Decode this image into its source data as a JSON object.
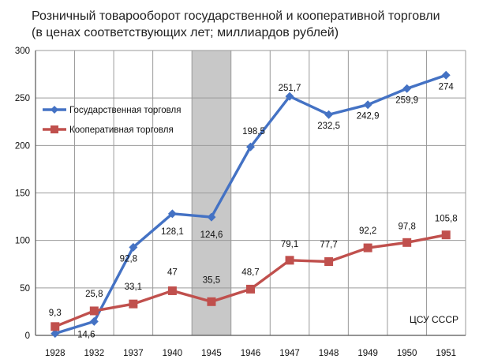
{
  "chart_data": {
    "type": "line",
    "title_line1": "Розничный товарооборот государственной и кооперативной торговли",
    "title_line2": "(в ценах соответствующих лет; миллиардов рублей)",
    "categories": [
      "1928",
      "1932",
      "1937",
      "1940",
      "1945",
      "1946",
      "1947",
      "1948",
      "1949",
      "1950",
      "1951"
    ],
    "ylim": [
      0,
      300
    ],
    "yticks": [
      0,
      50,
      100,
      150,
      200,
      250,
      300
    ],
    "grid": true,
    "legend_position": "top-left",
    "highlight_category": "1945",
    "source": "ЦСУ СССР",
    "series": [
      {
        "name": "Государственная торговля",
        "color": "#4472c4",
        "marker": "diamond",
        "values": [
          2,
          14.6,
          92.8,
          128.1,
          124.6,
          198.5,
          251.7,
          232.5,
          242.9,
          259.9,
          274
        ],
        "labels": [
          "",
          "14,6",
          "92,8",
          "128,1",
          "124,6",
          "198,5",
          "251,7",
          "232,5",
          "242,9",
          "259,9",
          "274"
        ]
      },
      {
        "name": "Кооперативная торговля",
        "color": "#c0504d",
        "marker": "square",
        "values": [
          9.3,
          25.8,
          33.1,
          47,
          35.5,
          48.7,
          79.1,
          77.7,
          92.2,
          97.8,
          105.8
        ],
        "labels": [
          "9,3",
          "25,8",
          "33,1",
          "47",
          "35,5",
          "48,7",
          "79,1",
          "77,7",
          "92,2",
          "97,8",
          "105,8"
        ]
      }
    ]
  }
}
